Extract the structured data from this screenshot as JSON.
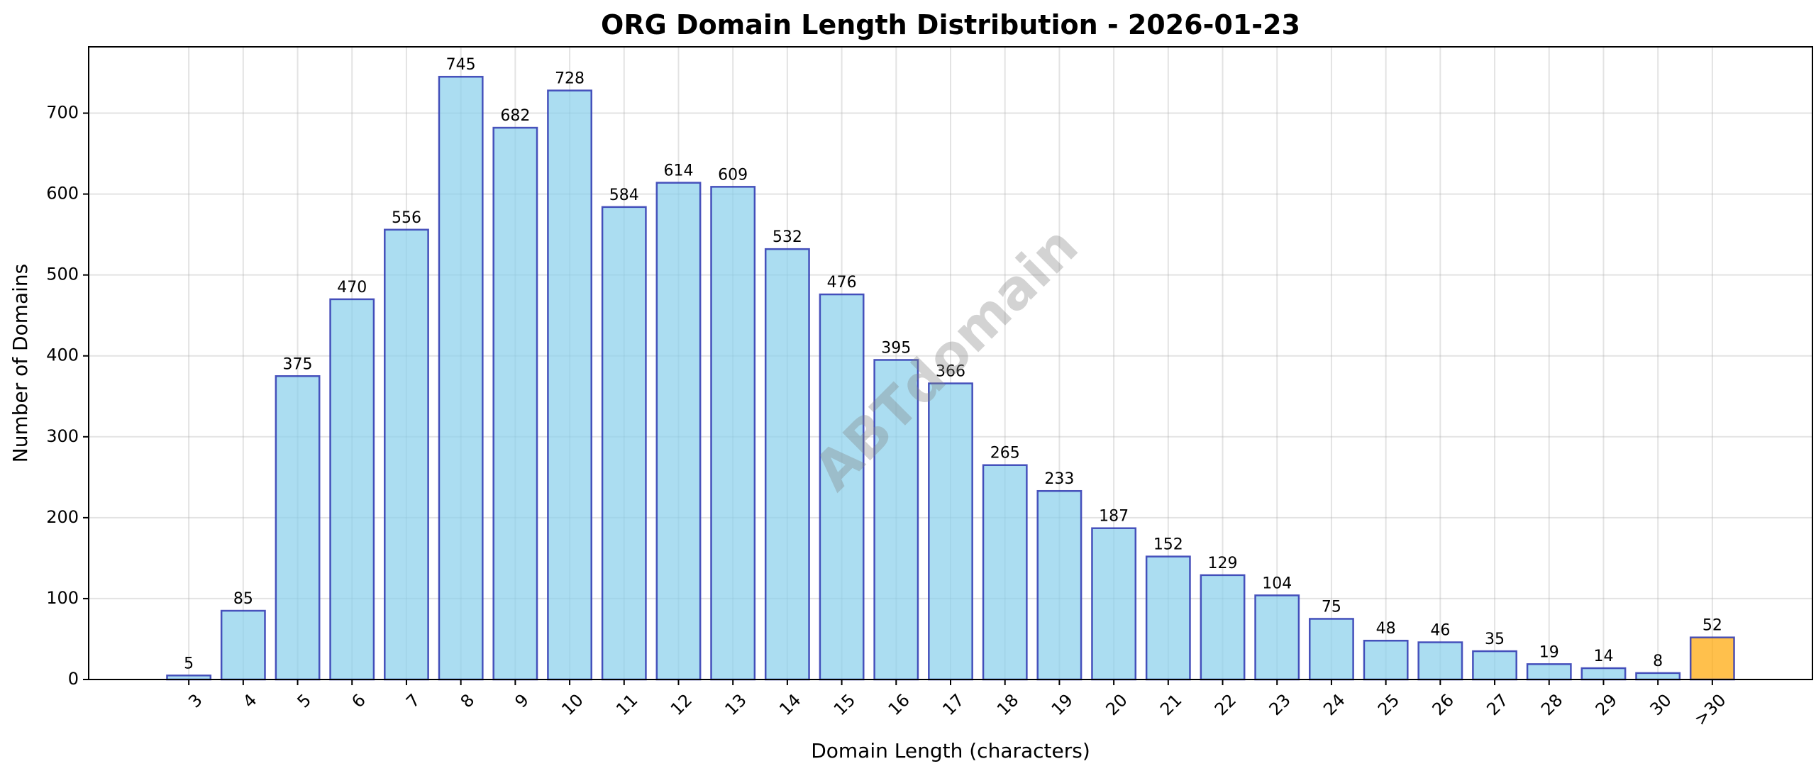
{
  "chart_data": {
    "type": "bar",
    "title": "ORG Domain Length Distribution - 2026-01-23",
    "xlabel": "Domain Length (characters)",
    "ylabel": "Number of Domains",
    "categories": [
      "3",
      "4",
      "5",
      "6",
      "7",
      "8",
      "9",
      "10",
      "11",
      "12",
      "13",
      "14",
      "15",
      "16",
      "17",
      "18",
      "19",
      "20",
      "21",
      "22",
      "23",
      "24",
      "25",
      "26",
      "27",
      "28",
      "29",
      "30",
      ">30"
    ],
    "values": [
      5,
      85,
      375,
      470,
      556,
      745,
      682,
      728,
      584,
      614,
      609,
      532,
      476,
      395,
      366,
      265,
      233,
      187,
      152,
      129,
      104,
      75,
      48,
      46,
      35,
      19,
      14,
      8,
      52
    ],
    "ylim": [
      0,
      782
    ],
    "yticks": [
      0,
      100,
      200,
      300,
      400,
      500,
      600,
      700
    ],
    "grid": true,
    "data_labels": true,
    "colors": {
      "bar": "#87CEEB",
      "bar_edge": "#2B35B0",
      "highlight_bar": "#FFA500",
      "watermark": "#808080"
    },
    "highlight_category": ">30",
    "watermark": "ABTdomain"
  }
}
